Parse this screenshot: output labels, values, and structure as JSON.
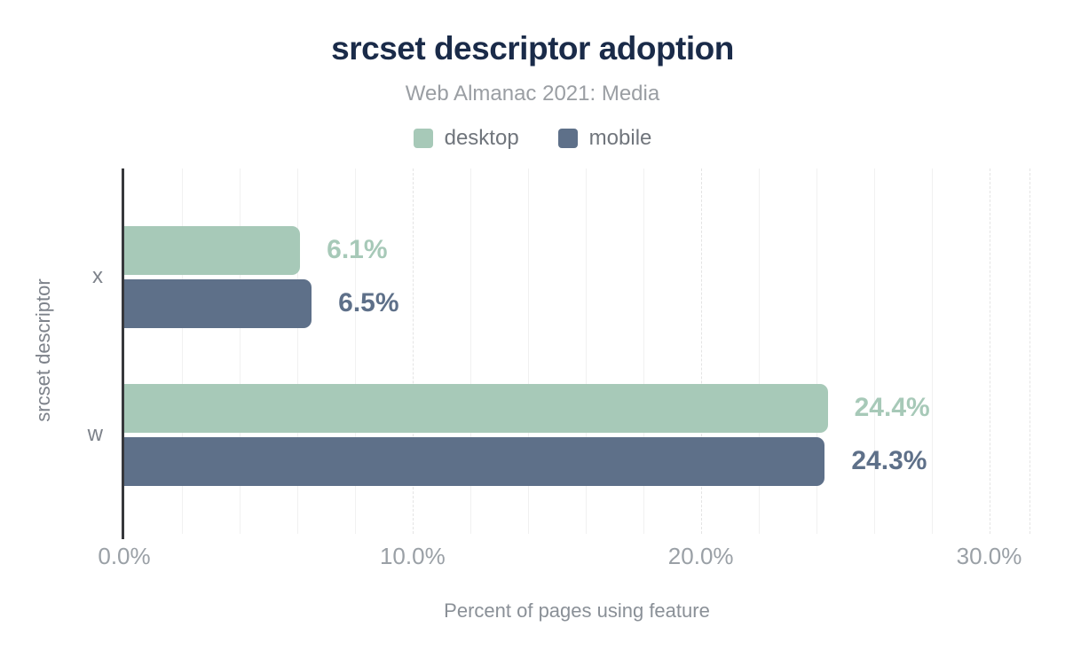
{
  "chart_data": {
    "type": "bar",
    "orientation": "horizontal",
    "title": "srcset descriptor adoption",
    "subtitle": "Web Almanac 2021: Media",
    "categories": [
      "x",
      "w"
    ],
    "series": [
      {
        "name": "desktop",
        "color": "#a7c9b8",
        "values": [
          6.1,
          24.4
        ],
        "labels": [
          "6.1%",
          "24.4%"
        ]
      },
      {
        "name": "mobile",
        "color": "#5e7089",
        "values": [
          6.5,
          24.3
        ],
        "labels": [
          "6.5%",
          "24.3%"
        ]
      }
    ],
    "xlabel": "Percent of pages using feature",
    "ylabel": "srcset descriptor",
    "x_ticks": [
      {
        "value": 0,
        "label": "0.0%"
      },
      {
        "value": 10,
        "label": "10.0%"
      },
      {
        "value": 20,
        "label": "20.0%"
      },
      {
        "value": 30,
        "label": "30.0%"
      }
    ],
    "xlim": [
      0,
      31.4
    ],
    "minor_grid_step": 2,
    "grid": true,
    "legend_position": "top"
  },
  "colors": {
    "title": "#1a2b49",
    "subtitle": "#9a9ea3",
    "legend_text": "#70757c",
    "category_text": "#7d828a",
    "tick_text": "#9aa0a6",
    "axis_title_text": "#8a9097",
    "axis_line": "#37383c",
    "minor_gridline": "#f1f1f1",
    "major_gridline": "#e4e4e4",
    "background": "#ffffff"
  }
}
